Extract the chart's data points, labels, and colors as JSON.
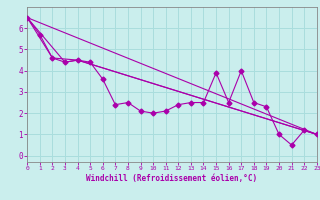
{
  "xlabel": "Windchill (Refroidissement éolien,°C)",
  "background_color": "#caeeed",
  "line_color": "#aa00aa",
  "grid_color": "#aadddd",
  "spine_color": "#888888",
  "xlim": [
    0,
    23
  ],
  "ylim": [
    -0.3,
    7.0
  ],
  "xticks": [
    0,
    1,
    2,
    3,
    4,
    5,
    6,
    7,
    8,
    9,
    10,
    11,
    12,
    13,
    14,
    15,
    16,
    17,
    18,
    19,
    20,
    21,
    22,
    23
  ],
  "yticks": [
    0,
    1,
    2,
    3,
    4,
    5,
    6
  ],
  "series1_x": [
    0,
    1,
    2,
    3,
    4,
    5,
    6,
    7,
    8,
    9,
    10,
    11,
    12,
    13,
    14,
    15,
    16,
    17,
    18,
    19,
    20,
    21,
    22,
    23
  ],
  "series1_y": [
    6.5,
    5.7,
    4.6,
    4.4,
    4.5,
    4.4,
    3.6,
    2.4,
    2.5,
    2.1,
    2.0,
    2.1,
    2.4,
    2.5,
    2.5,
    3.9,
    2.5,
    4.0,
    2.5,
    2.3,
    1.0,
    0.5,
    1.2,
    1.0
  ],
  "series2_x": [
    0,
    23
  ],
  "series2_y": [
    6.5,
    1.0
  ],
  "series3_x": [
    0,
    2,
    4,
    23
  ],
  "series3_y": [
    6.5,
    4.6,
    4.5,
    1.0
  ],
  "series4_x": [
    0,
    3,
    4,
    23
  ],
  "series4_y": [
    6.5,
    4.4,
    4.5,
    1.0
  ]
}
